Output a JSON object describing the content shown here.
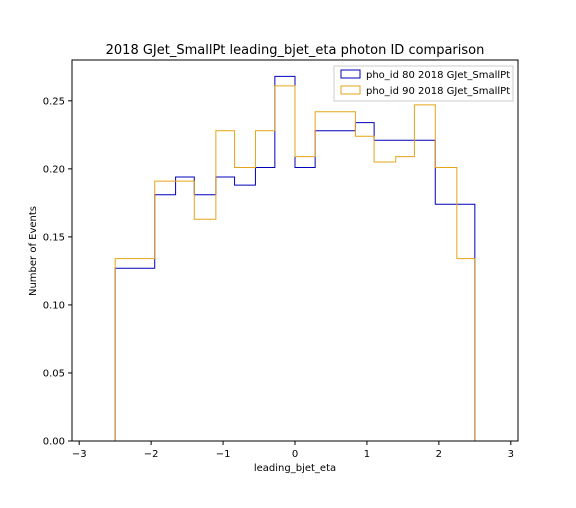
{
  "chart_data": {
    "type": "histogram",
    "title": "2018 GJet_SmallPt leading_bjet_eta photon ID comparison",
    "xlabel": "leading_bjet_eta",
    "ylabel": "Number of Events",
    "xlim": [
      -3.1,
      3.1
    ],
    "ylim": [
      0,
      0.28
    ],
    "xticks": [
      -3,
      -2,
      -1,
      0,
      1,
      2,
      3
    ],
    "xtick_labels": [
      "−3",
      "−2",
      "−1",
      "0",
      "1",
      "2",
      "3"
    ],
    "yticks": [
      0.0,
      0.05,
      0.1,
      0.15,
      0.2,
      0.25
    ],
    "ytick_labels": [
      "0.00",
      "0.05",
      "0.10",
      "0.15",
      "0.20",
      "0.25"
    ],
    "grid": false,
    "legend_position": "top-right",
    "bin_edges": [
      -2.5,
      -1.95,
      -1.66,
      -1.4,
      -1.1,
      -0.84,
      -0.55,
      -0.28,
      0.0,
      0.28,
      0.84,
      1.1,
      1.4,
      1.66,
      1.95,
      2.25,
      2.5
    ],
    "series": [
      {
        "name": "pho_id 80 2018 GJet_SmallPt",
        "color": "#0000bb",
        "values": [
          0.127,
          0.181,
          0.194,
          0.181,
          0.194,
          0.188,
          0.201,
          0.268,
          0.201,
          0.228,
          0.234,
          0.221,
          0.221,
          0.221,
          0.174,
          0.174
        ]
      },
      {
        "name": "pho_id 90 2018 GJet_SmallPt",
        "color": "#e6a317",
        "values": [
          0.134,
          0.191,
          0.191,
          0.163,
          0.228,
          0.201,
          0.228,
          0.261,
          0.209,
          0.242,
          0.224,
          0.205,
          0.209,
          0.247,
          0.201,
          0.134
        ]
      }
    ]
  }
}
